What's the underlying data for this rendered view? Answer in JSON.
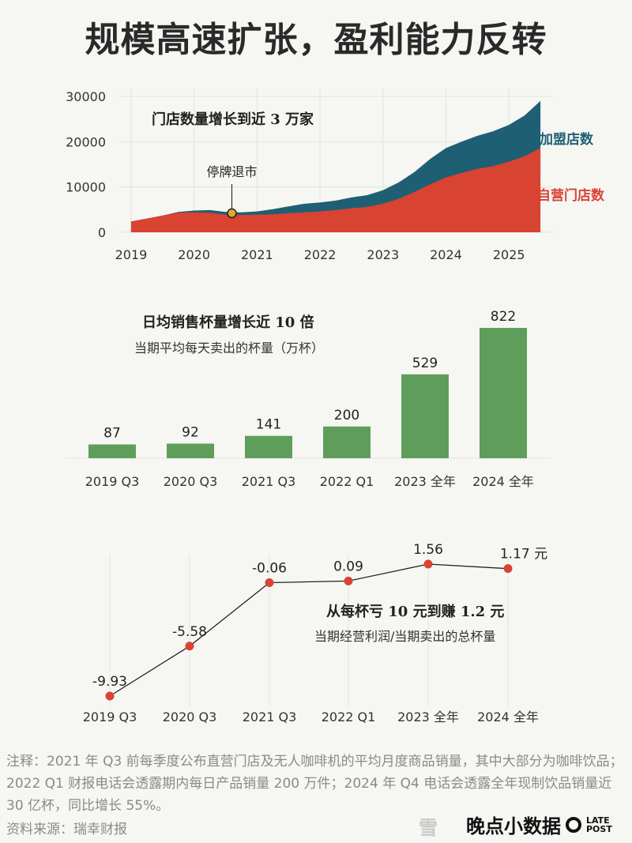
{
  "title": "规模高速扩张，盈利能力反转",
  "colors": {
    "franchise": "#1f5f73",
    "self": "#d94332",
    "bar": "#5e9e5a",
    "point": "#d94332"
  },
  "chart_data": [
    {
      "type": "area",
      "title": "门店数量增长到近 3 万家",
      "annotation": "停牌退市",
      "annotation_x": 2020.6,
      "annotation_y": 4200,
      "x_ticks": [
        "2019",
        "2020",
        "2021",
        "2022",
        "2023",
        "2024",
        "2025"
      ],
      "x_tick_values": [
        2019,
        2020,
        2021,
        2022,
        2023,
        2024,
        2025
      ],
      "y_ticks": [
        "30000",
        "20000",
        "10000",
        "0"
      ],
      "y_tick_values": [
        30000,
        20000,
        10000,
        0
      ],
      "ylim": [
        0,
        30000
      ],
      "xlim": [
        2018.8,
        2025.7
      ],
      "series": [
        {
          "name": "加盟店数",
          "x": [
            2019.0,
            2019.5,
            2019.75,
            2020.0,
            2020.25,
            2020.5,
            2020.75,
            2021.0,
            2021.25,
            2021.5,
            2021.75,
            2022.0,
            2022.25,
            2022.5,
            2022.75,
            2023.0,
            2023.25,
            2023.5,
            2023.75,
            2024.0,
            2024.25,
            2024.5,
            2024.75,
            2025.0,
            2025.25,
            2025.5
          ],
          "values": [
            2370,
            3680,
            4500,
            4800,
            4900,
            4500,
            4400,
            4600,
            5100,
            5700,
            6300,
            6600,
            7000,
            7700,
            8200,
            9300,
            11000,
            13300,
            16200,
            18600,
            20000,
            21300,
            22300,
            23700,
            25800,
            29000
          ]
        },
        {
          "name": "自营门店数",
          "x": [
            2019.0,
            2019.5,
            2019.75,
            2020.0,
            2020.25,
            2020.5,
            2020.75,
            2021.0,
            2021.25,
            2021.5,
            2021.75,
            2022.0,
            2022.25,
            2022.5,
            2022.75,
            2023.0,
            2023.25,
            2023.5,
            2023.75,
            2024.0,
            2024.25,
            2024.5,
            2024.75,
            2025.0,
            2025.25,
            2025.5
          ],
          "values": [
            2370,
            3680,
            4300,
            4400,
            4300,
            3900,
            3800,
            3900,
            4000,
            4200,
            4400,
            4600,
            4900,
            5300,
            5600,
            6300,
            7400,
            8900,
            10600,
            12100,
            13100,
            14000,
            14600,
            15600,
            16800,
            18600
          ]
        }
      ]
    },
    {
      "type": "bar",
      "title": "日均销售杯量增长近 10 倍",
      "subtitle": "当期平均每天卖出的杯量（万杯）",
      "categories": [
        "2019 Q3",
        "2020 Q3",
        "2021 Q3",
        "2022 Q1",
        "2023 全年",
        "2024 全年"
      ],
      "values": [
        87,
        92,
        141,
        200,
        529,
        822
      ],
      "labels": [
        "87",
        "92",
        "141",
        "200",
        "529",
        "822"
      ],
      "ylim": [
        0,
        822
      ]
    },
    {
      "type": "line",
      "title": "从每杯亏 10 元到赚 1.2 元",
      "subtitle": "当期经营利润/当期卖出的总杯量",
      "categories": [
        "2019 Q3",
        "2020 Q3",
        "2021 Q3",
        "2022 Q1",
        "2023 全年",
        "2024 全年"
      ],
      "values": [
        -9.93,
        -5.58,
        -0.06,
        0.09,
        1.56,
        1.17
      ],
      "labels": [
        "-9.93",
        "-5.58",
        "-0.06",
        "0.09",
        "1.56",
        "1.17 元"
      ],
      "ylim": [
        -9.93,
        1.56
      ]
    }
  ],
  "notes": {
    "text": "注释：2021 年 Q3 前每季度公布直营门店及无人咖啡机的平均月度商品销量，其中大部分为咖啡饮品；2022 Q1 财报电话会透露期内每日产品销量 200 万件；2024 年 Q4 电话会透露全年现制饮品销量近 30 亿杯，同比增长 55%。",
    "source": "资料来源：瑞幸财报"
  },
  "branding": {
    "watermark": "雪",
    "name": "晚点小数据",
    "late_line1": "LATE",
    "late_line2": "POST"
  }
}
